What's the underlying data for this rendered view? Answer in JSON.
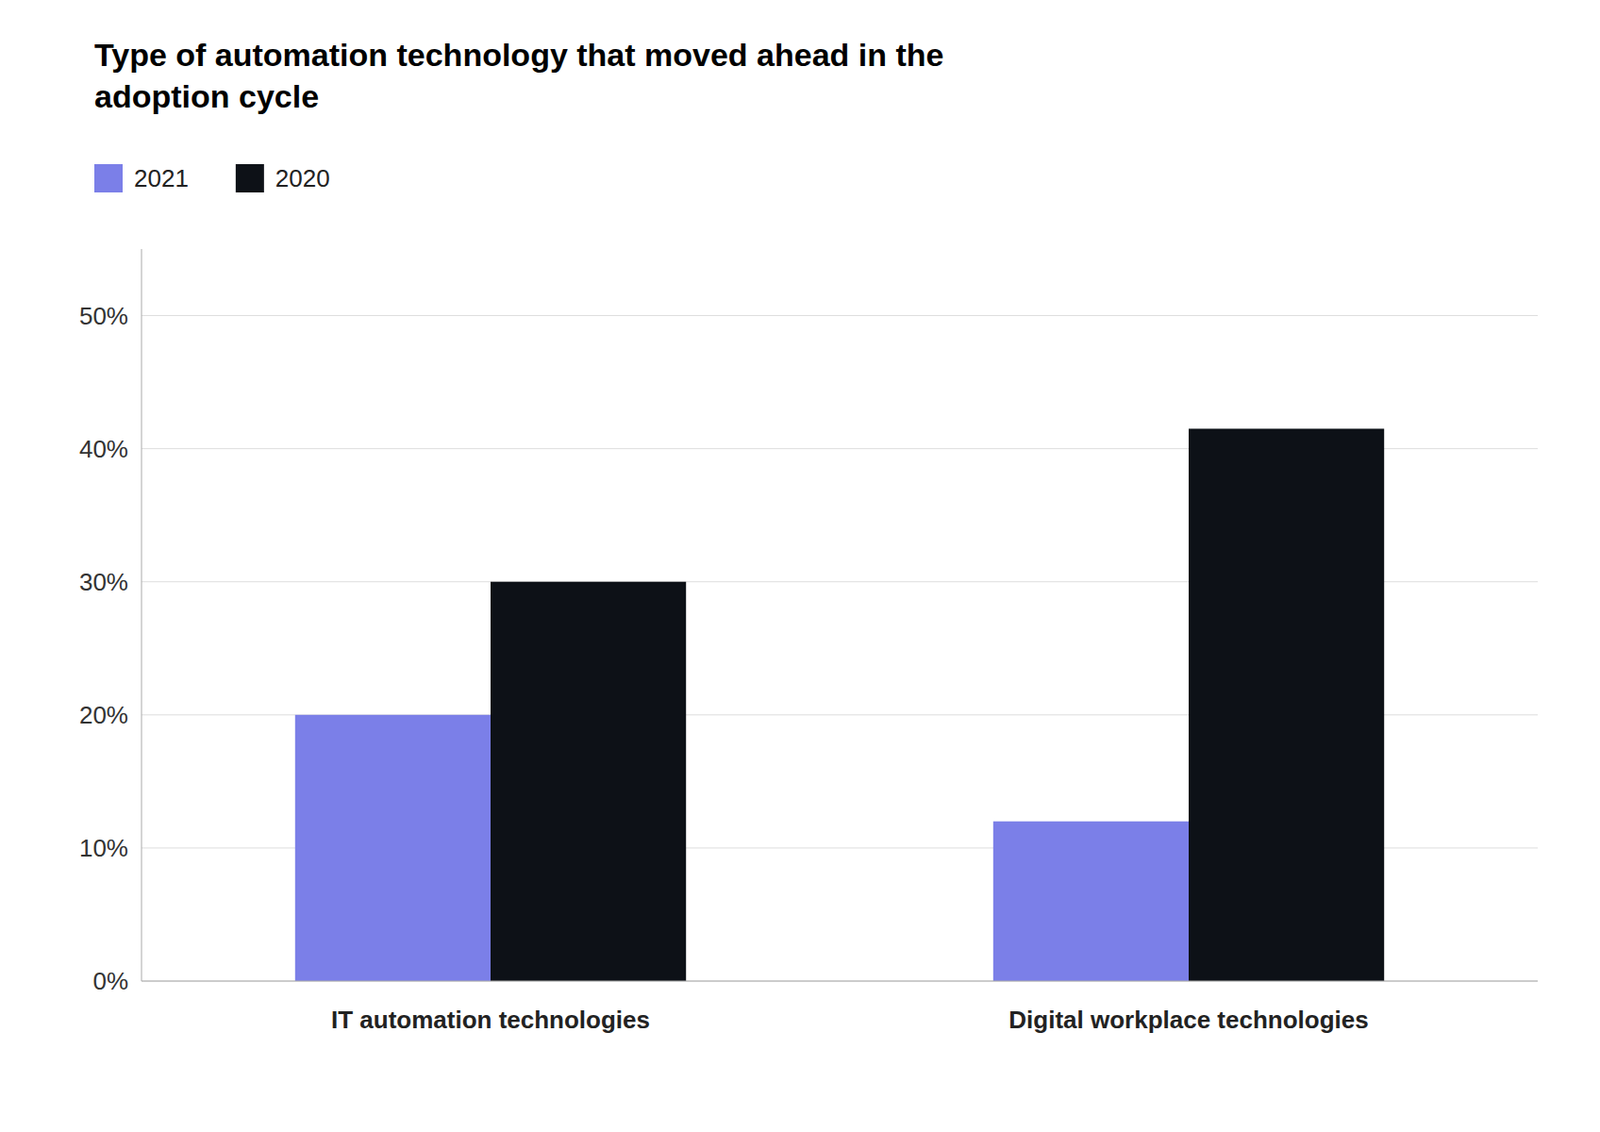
{
  "chart_data": {
    "type": "bar",
    "title": "Type of automation technology that moved ahead in the\nadoption cycle",
    "categories": [
      "IT automation technologies",
      "Digital workplace technologies"
    ],
    "series": [
      {
        "name": "2021",
        "color": "#7B7FE8",
        "values": [
          0.2,
          0.12
        ]
      },
      {
        "name": "2020",
        "color": "#0D1117",
        "values": [
          0.3,
          0.415
        ]
      }
    ],
    "ylim": [
      0,
      0.55
    ],
    "yticks": [
      {
        "value": 0.0,
        "label": "0%"
      },
      {
        "value": 0.1,
        "label": "10%"
      },
      {
        "value": 0.2,
        "label": "20%"
      },
      {
        "value": 0.3,
        "label": "30%"
      },
      {
        "value": 0.4,
        "label": "40%"
      },
      {
        "value": 0.5,
        "label": "50%"
      }
    ],
    "grid": true,
    "legend": "upper left"
  }
}
